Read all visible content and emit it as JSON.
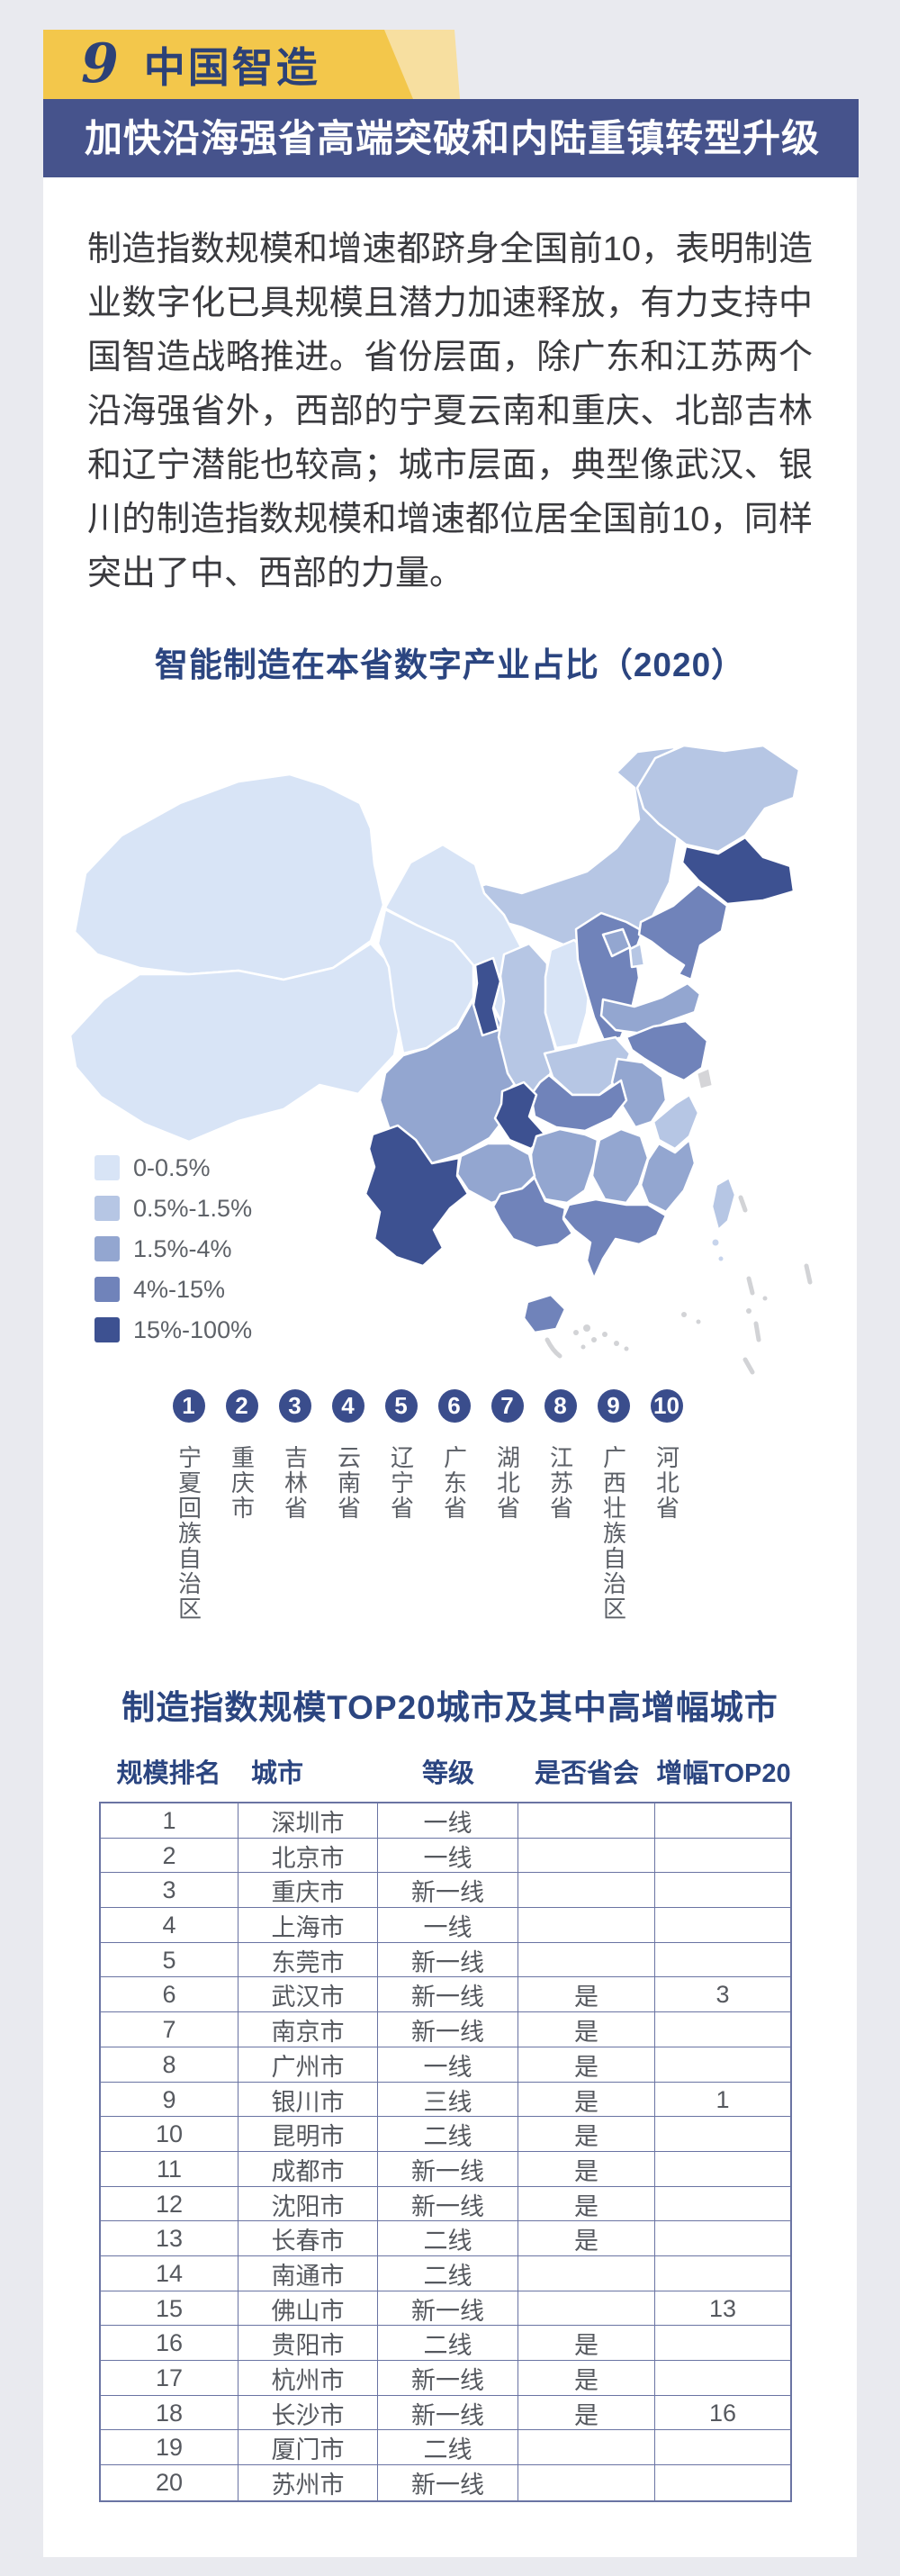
{
  "page": {
    "background": "#E9EAEF",
    "card_background": "#FFFFFF"
  },
  "header": {
    "section_number": "9",
    "section_title": "中国智造",
    "subtitle": "加快沿海强省高端突破和内陆重镇转型升级",
    "colors": {
      "badge_yellow": "#F3C74B",
      "badge_yellow_light": "#F7DFA0",
      "bar_navy": "#46538C",
      "title_navy": "#2C4177",
      "subtitle_text": "#FFFFFF"
    }
  },
  "intro": {
    "text": "制造指数规模和增速都跻身全国前10，表明制造业数字化已具规模且潜力加速释放，有力支持中国智造战略推进。省份层面，除广东和江苏两个沿海强省外，西部的宁夏云南和重庆、北部吉林和辽宁潜能也较高；城市层面，典型像武汉、银川的制造指数规模和增速都位居全国前10，同样突出了中、西部的力量。"
  },
  "map_section": {
    "title": "智能制造在本省数字产业占比（2020）",
    "title_color": "#2B4580",
    "legend": [
      {
        "label": "0-0.5%",
        "key": "c1"
      },
      {
        "label": "0.5%-1.5%",
        "key": "c2"
      },
      {
        "label": "1.5%-4%",
        "key": "c3"
      },
      {
        "label": "4%-15%",
        "key": "c4"
      },
      {
        "label": "15%-100%",
        "key": "c5"
      }
    ],
    "category_colors": {
      "c1": "#D8E4F6",
      "c2": "#B6C6E4",
      "c3": "#93A6D0",
      "c4": "#7083BA",
      "c5": "#3D5191",
      "na": "#D5D5D8"
    },
    "island_color": "#D2D3D6",
    "island_light_color": "#C7D4EC",
    "province_categories": {
      "xinjiang": "c1",
      "tibet": "c1",
      "qinghai": "c1",
      "gansu": "c1",
      "shanxi": "c1",
      "inner_mongolia": "c2",
      "heilongjiang": "c2",
      "shaanxi": "c2",
      "henan": "c2",
      "zhejiang": "c2",
      "taiwan": "c2",
      "tianjin": "c2",
      "sichuan": "c3",
      "guizhou": "c3",
      "hunan": "c3",
      "jiangxi": "c3",
      "fujian": "c3",
      "shandong": "c3",
      "anhui": "c3",
      "beijing": "c3",
      "liaoning": "c4",
      "hebei": "c4",
      "jiangsu": "c4",
      "hubei": "c4",
      "guangdong": "c4",
      "guangxi": "c4",
      "hainan": "c4",
      "ningxia": "c5",
      "chongqing": "c5",
      "jilin": "c5",
      "yunnan": "c5",
      "shanghai": "na"
    },
    "ranking_badge_color": "#3A4D8C",
    "ranking": [
      {
        "rank": "1",
        "name": "宁夏回族自治区"
      },
      {
        "rank": "2",
        "name": "重庆市"
      },
      {
        "rank": "3",
        "name": "吉林省"
      },
      {
        "rank": "4",
        "name": "云南省"
      },
      {
        "rank": "5",
        "name": "辽宁省"
      },
      {
        "rank": "6",
        "name": "广东省"
      },
      {
        "rank": "7",
        "name": "湖北省"
      },
      {
        "rank": "8",
        "name": "江苏省"
      },
      {
        "rank": "9",
        "name": "广西壮族自治区"
      },
      {
        "rank": "10",
        "name": "河北省"
      }
    ]
  },
  "table_section": {
    "title": "制造指数规模TOP20城市及其中高增幅城市",
    "title_color": "#2B4580",
    "header_color": "#2B4580",
    "border_color": "#6A74A3",
    "headers": [
      "规模排名",
      "城市",
      "等级",
      "是否省会",
      "增幅TOP20"
    ],
    "rows": [
      [
        "1",
        "深圳市",
        "一线",
        "",
        ""
      ],
      [
        "2",
        "北京市",
        "一线",
        "",
        ""
      ],
      [
        "3",
        "重庆市",
        "新一线",
        "",
        ""
      ],
      [
        "4",
        "上海市",
        "一线",
        "",
        ""
      ],
      [
        "5",
        "东莞市",
        "新一线",
        "",
        ""
      ],
      [
        "6",
        "武汉市",
        "新一线",
        "是",
        "3"
      ],
      [
        "7",
        "南京市",
        "新一线",
        "是",
        ""
      ],
      [
        "8",
        "广州市",
        "一线",
        "是",
        ""
      ],
      [
        "9",
        "银川市",
        "三线",
        "是",
        "1"
      ],
      [
        "10",
        "昆明市",
        "二线",
        "是",
        ""
      ],
      [
        "11",
        "成都市",
        "新一线",
        "是",
        ""
      ],
      [
        "12",
        "沈阳市",
        "新一线",
        "是",
        ""
      ],
      [
        "13",
        "长春市",
        "二线",
        "是",
        ""
      ],
      [
        "14",
        "南通市",
        "二线",
        "",
        ""
      ],
      [
        "15",
        "佛山市",
        "新一线",
        "",
        "13"
      ],
      [
        "16",
        "贵阳市",
        "二线",
        "是",
        ""
      ],
      [
        "17",
        "杭州市",
        "新一线",
        "是",
        ""
      ],
      [
        "18",
        "长沙市",
        "新一线",
        "是",
        "16"
      ],
      [
        "19",
        "厦门市",
        "二线",
        "",
        ""
      ],
      [
        "20",
        "苏州市",
        "新一线",
        "",
        ""
      ]
    ]
  }
}
